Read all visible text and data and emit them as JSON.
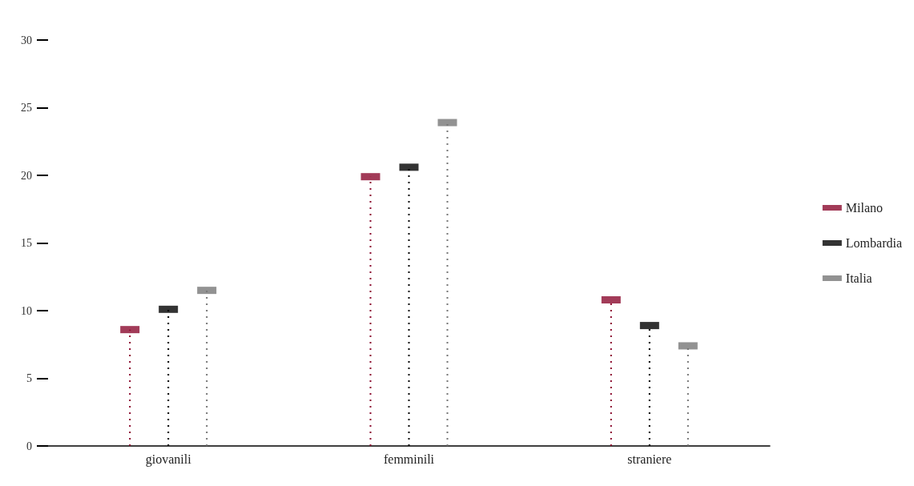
{
  "chart_data": {
    "type": "lollipop",
    "categories": [
      "giovanili",
      "femminili",
      "straniere"
    ],
    "series": [
      {
        "name": "Milano",
        "color": "#8b0a2e",
        "values": [
          8.6,
          19.9,
          10.8
        ]
      },
      {
        "name": "Lombardia",
        "color": "#000000",
        "values": [
          10.1,
          20.6,
          8.9
        ]
      },
      {
        "name": "Italia",
        "color": "#777777",
        "values": [
          11.5,
          23.9,
          7.4
        ]
      }
    ],
    "ylim": [
      0,
      30
    ],
    "yticks": [
      0,
      5,
      10,
      15,
      20,
      25,
      30
    ],
    "grid": false,
    "legend": "right",
    "line_style": "dotted"
  }
}
